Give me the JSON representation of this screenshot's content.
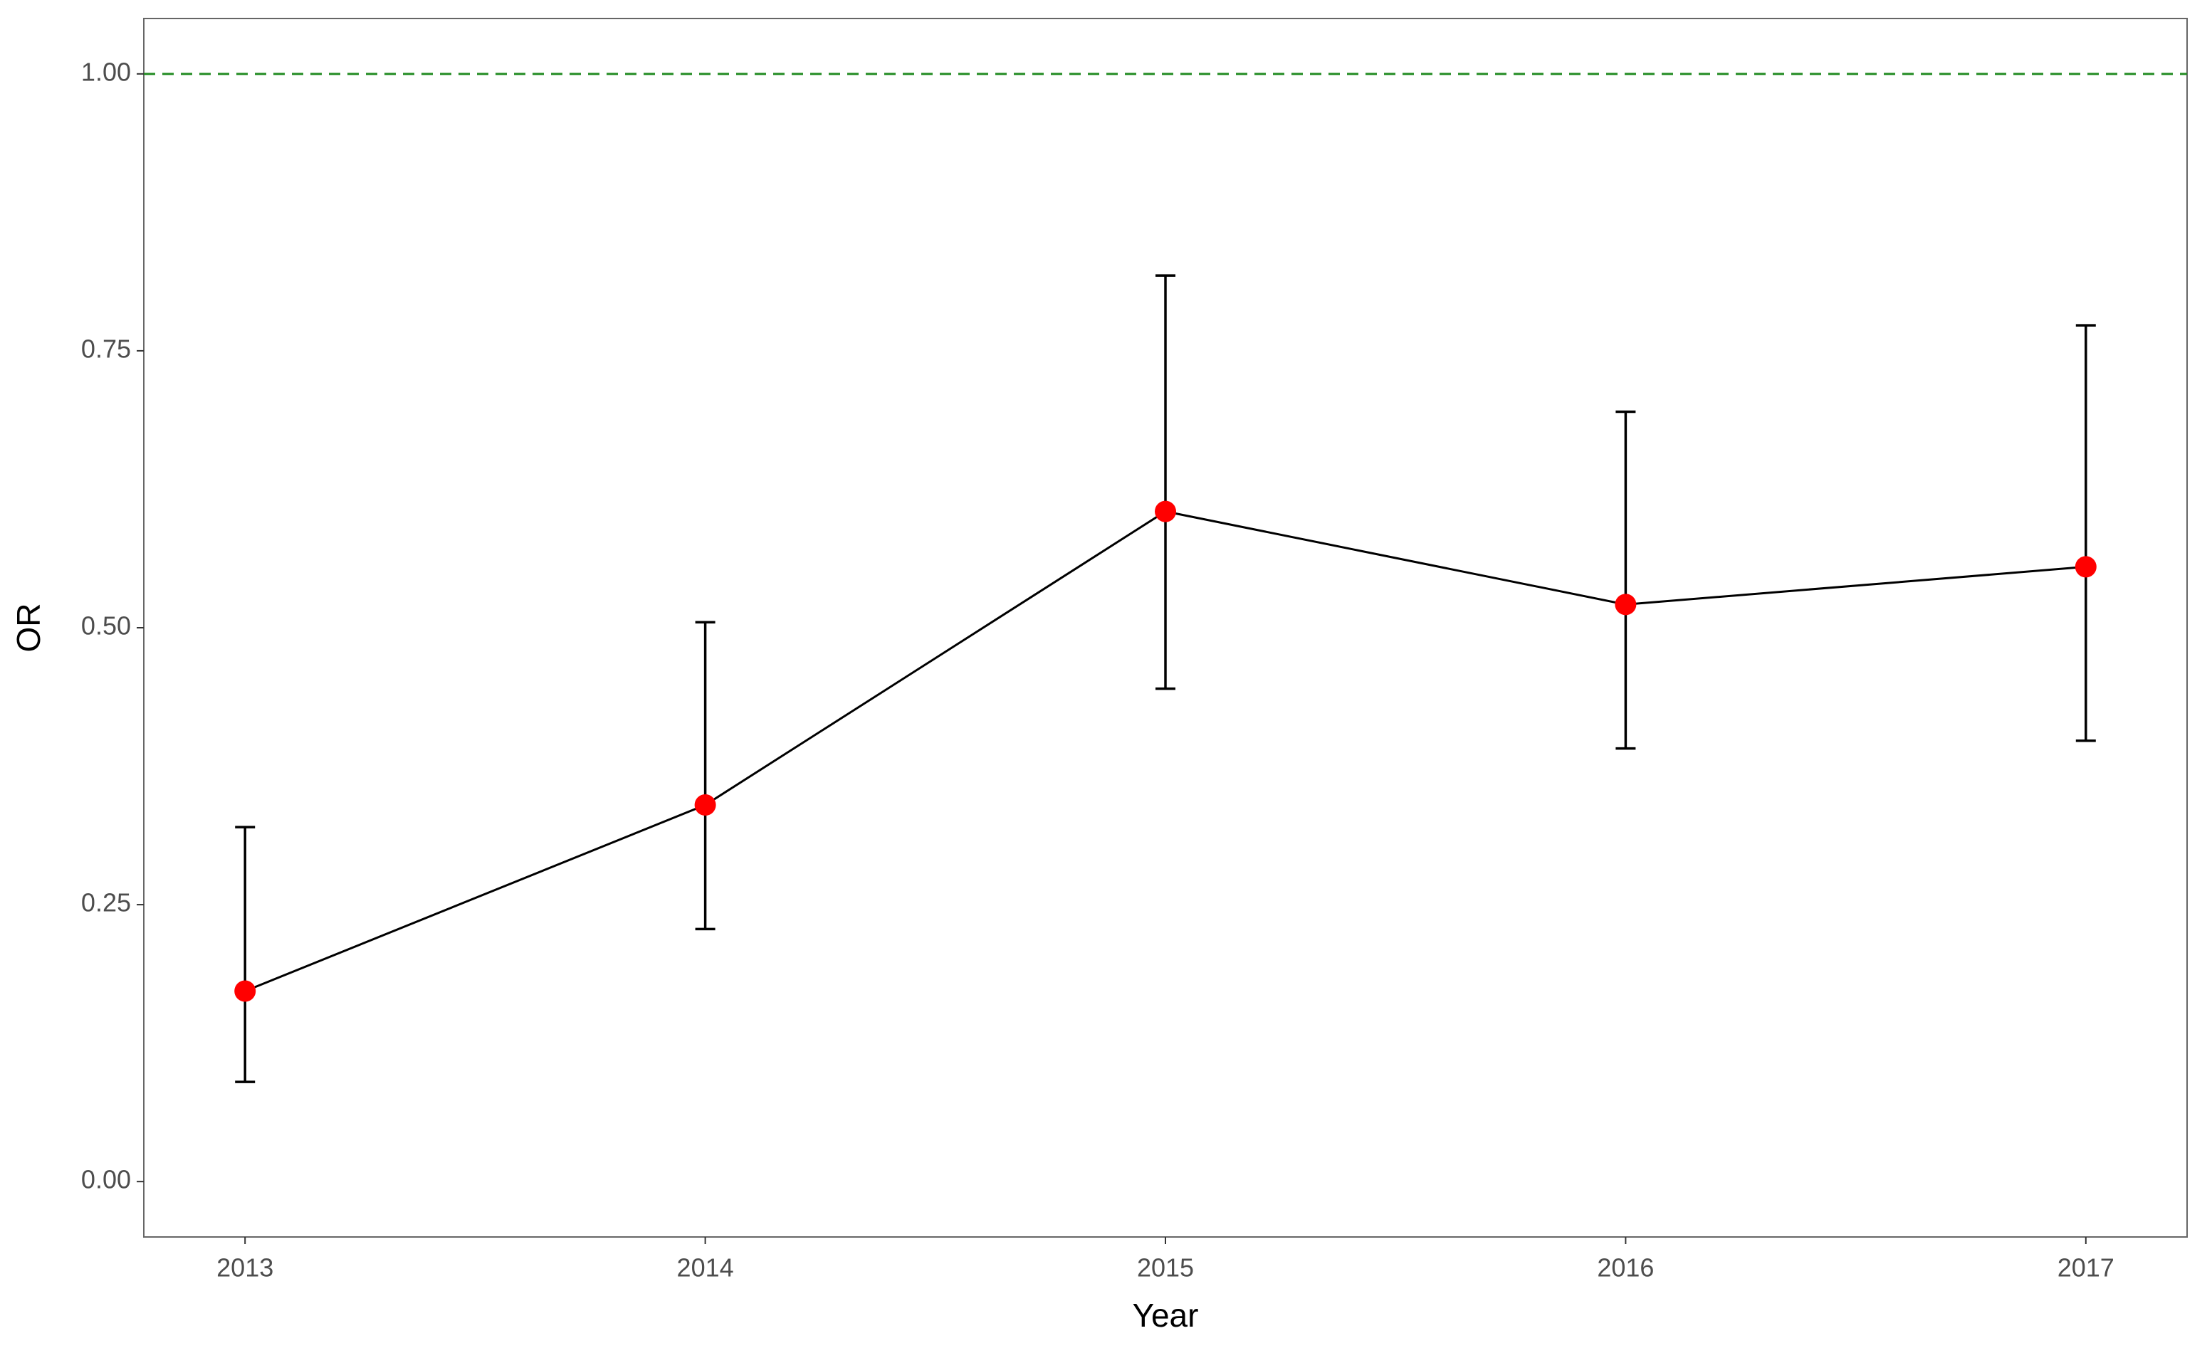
{
  "chart_data": {
    "type": "line",
    "x_label": "Year",
    "y_label": "OR",
    "x": [
      2013,
      2014,
      2015,
      2016,
      2017
    ],
    "values": [
      0.172,
      0.34,
      0.605,
      0.521,
      0.555
    ],
    "lower": [
      0.09,
      0.228,
      0.445,
      0.391,
      0.398
    ],
    "upper": [
      0.32,
      0.505,
      0.818,
      0.695,
      0.773
    ],
    "point_color": "#ff0000",
    "line_color": "#000000",
    "reference_line": {
      "value": 1,
      "color": "#228b22"
    },
    "xlim": [
      2012.78,
      2017.22
    ],
    "xticks": [
      2013,
      2014,
      2015,
      2016,
      2017
    ],
    "ylim": [
      -0.05,
      1.05
    ],
    "yticks": [
      {
        "value": 0,
        "label": "0.00"
      },
      {
        "value": 0.25,
        "label": "0.25"
      },
      {
        "value": 0.5,
        "label": "0.50"
      },
      {
        "value": 0.75,
        "label": "0.75"
      },
      {
        "value": 1,
        "label": "1.00"
      }
    ]
  }
}
